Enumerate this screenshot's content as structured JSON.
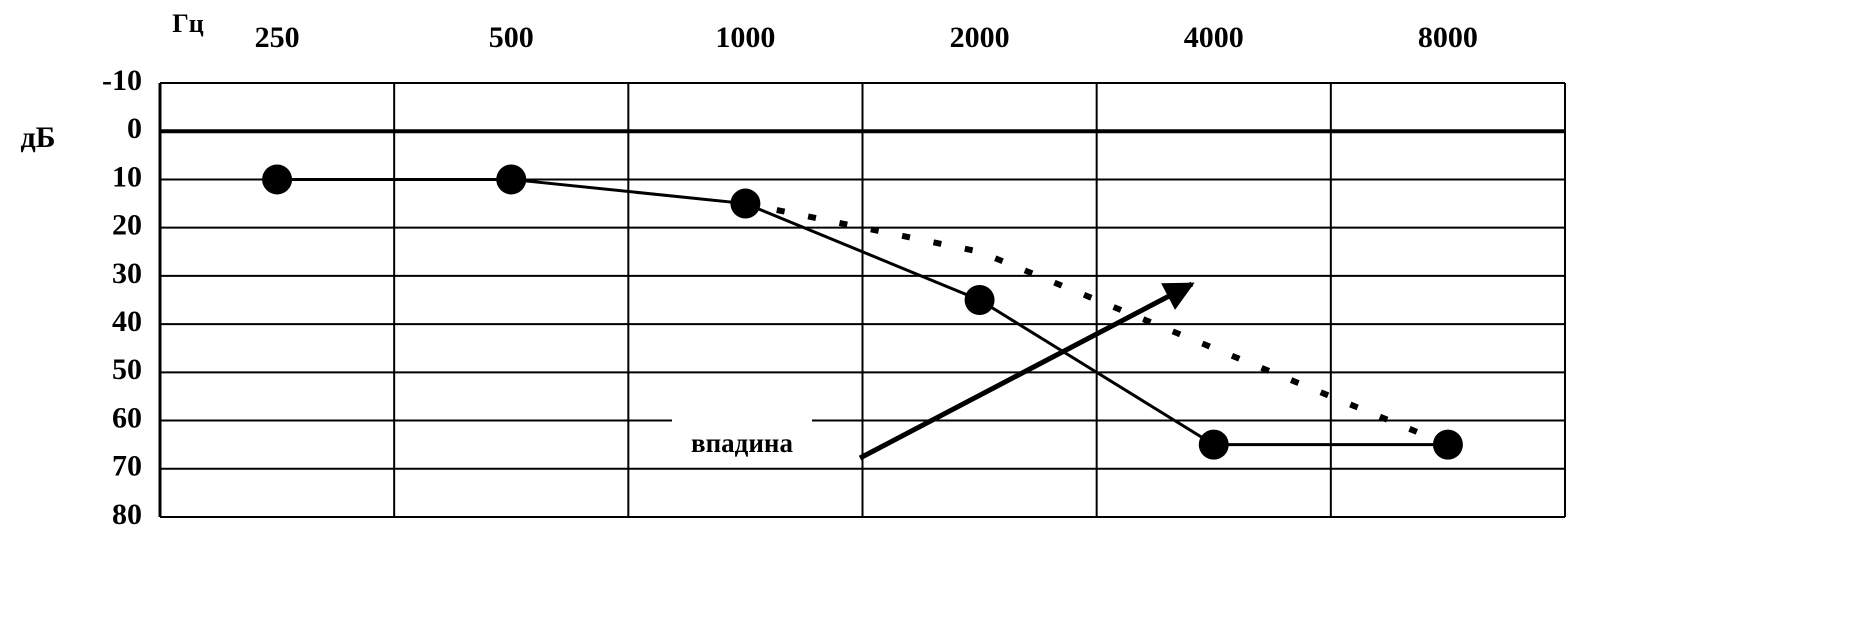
{
  "chart_data": {
    "type": "line",
    "x_label": "Гц",
    "y_label": "дБ",
    "categories": [
      "250",
      "500",
      "1000",
      "2000",
      "4000",
      "8000"
    ],
    "series": [
      {
        "color": "#000000",
        "line_style": "solid",
        "markers": true,
        "values": [
          10,
          10,
          15,
          35,
          65,
          65
        ]
      },
      {
        "color": "#000000",
        "line_style": "dotted",
        "markers": false,
        "values": [
          null,
          null,
          15,
          25,
          45,
          65
        ]
      }
    ],
    "ylim": [
      -10,
      80
    ],
    "y_inverted": true,
    "yticks": [
      -10,
      0,
      10,
      20,
      30,
      40,
      50,
      60,
      70,
      80
    ],
    "grid": true,
    "annotations": [
      {
        "text": "впадина"
      }
    ]
  }
}
